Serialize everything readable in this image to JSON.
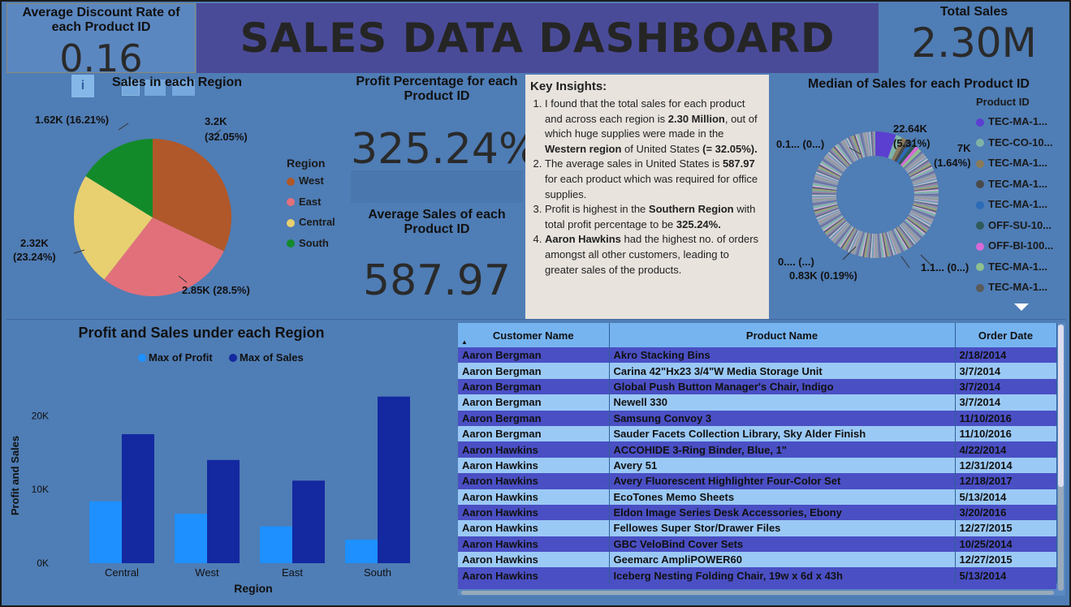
{
  "dashboard_title": "SALES DATA DASHBOARD",
  "kpis": {
    "discount_title": "Average Discount Rate of each Product ID",
    "discount_value": "0.16",
    "total_sales_title": "Total Sales",
    "total_sales_value": "2.30M",
    "profit_pct_title": "Profit Percentage for each Product ID",
    "profit_pct_value": "325.24%",
    "avg_sales_title": "Average Sales of each Product ID",
    "avg_sales_value": "587.97"
  },
  "pie": {
    "title": "Sales in each Region",
    "legend_title": "Region",
    "labels": {
      "west": "3.2K\n(32.05%)",
      "east": "2.85K (28.5%)",
      "central_a": "2.32K",
      "central_b": "(23.24%)",
      "south": "1.62K (16.21%)"
    }
  },
  "insights": {
    "heading": "Key Insights:",
    "items": [
      [
        [
          "I found that the total sales for each product and across each region is ",
          false
        ],
        [
          "2.30 Million",
          true
        ],
        [
          ", out of which huge supplies were made in the ",
          false
        ],
        [
          "Western region",
          true
        ],
        [
          " of United States ",
          false
        ],
        [
          "(= 32.05%).",
          true
        ]
      ],
      [
        [
          "The average sales in United States is ",
          false
        ],
        [
          "587.97",
          true
        ],
        [
          " for each product which was required for office supplies.",
          false
        ]
      ],
      [
        [
          "Profit is highest in the ",
          false
        ],
        [
          "Southern Region",
          true
        ],
        [
          " with total profit percentage to be ",
          false
        ],
        [
          "325.24%.",
          true
        ]
      ],
      [
        [
          "Aaron Hawkins",
          true
        ],
        [
          " had the highest no. of orders amongst all other customers, leading to greater sales of the products.",
          false
        ]
      ]
    ]
  },
  "donut": {
    "title": "Median of Sales for each Product ID",
    "legend_title": "Product ID",
    "legend": [
      {
        "label": "TEC-MA-1...",
        "color": "#5b3fd0"
      },
      {
        "label": "TEC-CO-10...",
        "color": "#7fb3a8"
      },
      {
        "label": "TEC-MA-1...",
        "color": "#8a7a5a"
      },
      {
        "label": "TEC-MA-1...",
        "color": "#4a4a4a"
      },
      {
        "label": "TEC-MA-1...",
        "color": "#2c6bb8"
      },
      {
        "label": "OFF-SU-10...",
        "color": "#2e5a5a"
      },
      {
        "label": "OFF-BI-100...",
        "color": "#d86ad8"
      },
      {
        "label": "TEC-MA-1...",
        "color": "#8fc08f"
      },
      {
        "label": "TEC-MA-1...",
        "color": "#5a5a5a"
      }
    ],
    "labels": {
      "top": "22.64K",
      "top_pct": "(5.31%)",
      "right": "7K",
      "right_pct": "(1.64%)",
      "left_top": "0.1... (0...)",
      "left_bottom": "0.... (...)",
      "bottom": "0.83K (0.19%)",
      "bottom_right": "1.1... (0...)"
    }
  },
  "chart_data": {
    "type": "bar",
    "title": "Profit and Sales under each Region",
    "xlabel": "Region",
    "ylabel": "Profit and Sales",
    "categories": [
      "Central",
      "West",
      "East",
      "South"
    ],
    "series": [
      {
        "name": "Max of Profit",
        "color": "#1e90ff",
        "values": [
          8400,
          6700,
          5000,
          3200
        ]
      },
      {
        "name": "Max of Sales",
        "color": "#1428a0",
        "values": [
          17500,
          14000,
          11200,
          22600
        ]
      }
    ],
    "ylim": [
      0,
      24000
    ],
    "yticks": [
      "0K",
      "10K",
      "20K"
    ]
  },
  "pie_data": {
    "type": "pie",
    "categories": [
      "West",
      "East",
      "Central",
      "South"
    ],
    "values": [
      32.05,
      28.5,
      23.24,
      16.21
    ],
    "colors": [
      "#b0582a",
      "#e2707a",
      "#e8d070",
      "#138a2a"
    ]
  },
  "table": {
    "columns": [
      "Customer Name",
      "Product Name",
      "Order Date"
    ],
    "rows": [
      [
        "Aaron Bergman",
        "Akro Stacking Bins",
        "2/18/2014"
      ],
      [
        "Aaron Bergman",
        "Carina 42\"Hx23 3/4\"W Media Storage Unit",
        "3/7/2014"
      ],
      [
        "Aaron Bergman",
        "Global Push Button Manager's Chair, Indigo",
        "3/7/2014"
      ],
      [
        "Aaron Bergman",
        "Newell 330",
        "3/7/2014"
      ],
      [
        "Aaron Bergman",
        "Samsung Convoy 3",
        "11/10/2016"
      ],
      [
        "Aaron Bergman",
        "Sauder Facets Collection Library, Sky Alder Finish",
        "11/10/2016"
      ],
      [
        "Aaron Hawkins",
        "ACCOHIDE 3-Ring Binder, Blue, 1\"",
        "4/22/2014"
      ],
      [
        "Aaron Hawkins",
        "Avery 51",
        "12/31/2014"
      ],
      [
        "Aaron Hawkins",
        "Avery Fluorescent Highlighter Four-Color Set",
        "12/18/2017"
      ],
      [
        "Aaron Hawkins",
        "EcoTones Memo Sheets",
        "5/13/2014"
      ],
      [
        "Aaron Hawkins",
        "Eldon Image Series Desk Accessories, Ebony",
        "3/20/2016"
      ],
      [
        "Aaron Hawkins",
        "Fellowes Super Stor/Drawer Files",
        "12/27/2015"
      ],
      [
        "Aaron Hawkins",
        "GBC VeloBind Cover Sets",
        "10/25/2014"
      ],
      [
        "Aaron Hawkins",
        "Geemarc AmpliPOWER60",
        "12/27/2015"
      ],
      [
        "Aaron Hawkins",
        "Iceberg Nesting Folding Chair, 19w x 6d x 43h",
        "5/13/2014"
      ]
    ]
  }
}
